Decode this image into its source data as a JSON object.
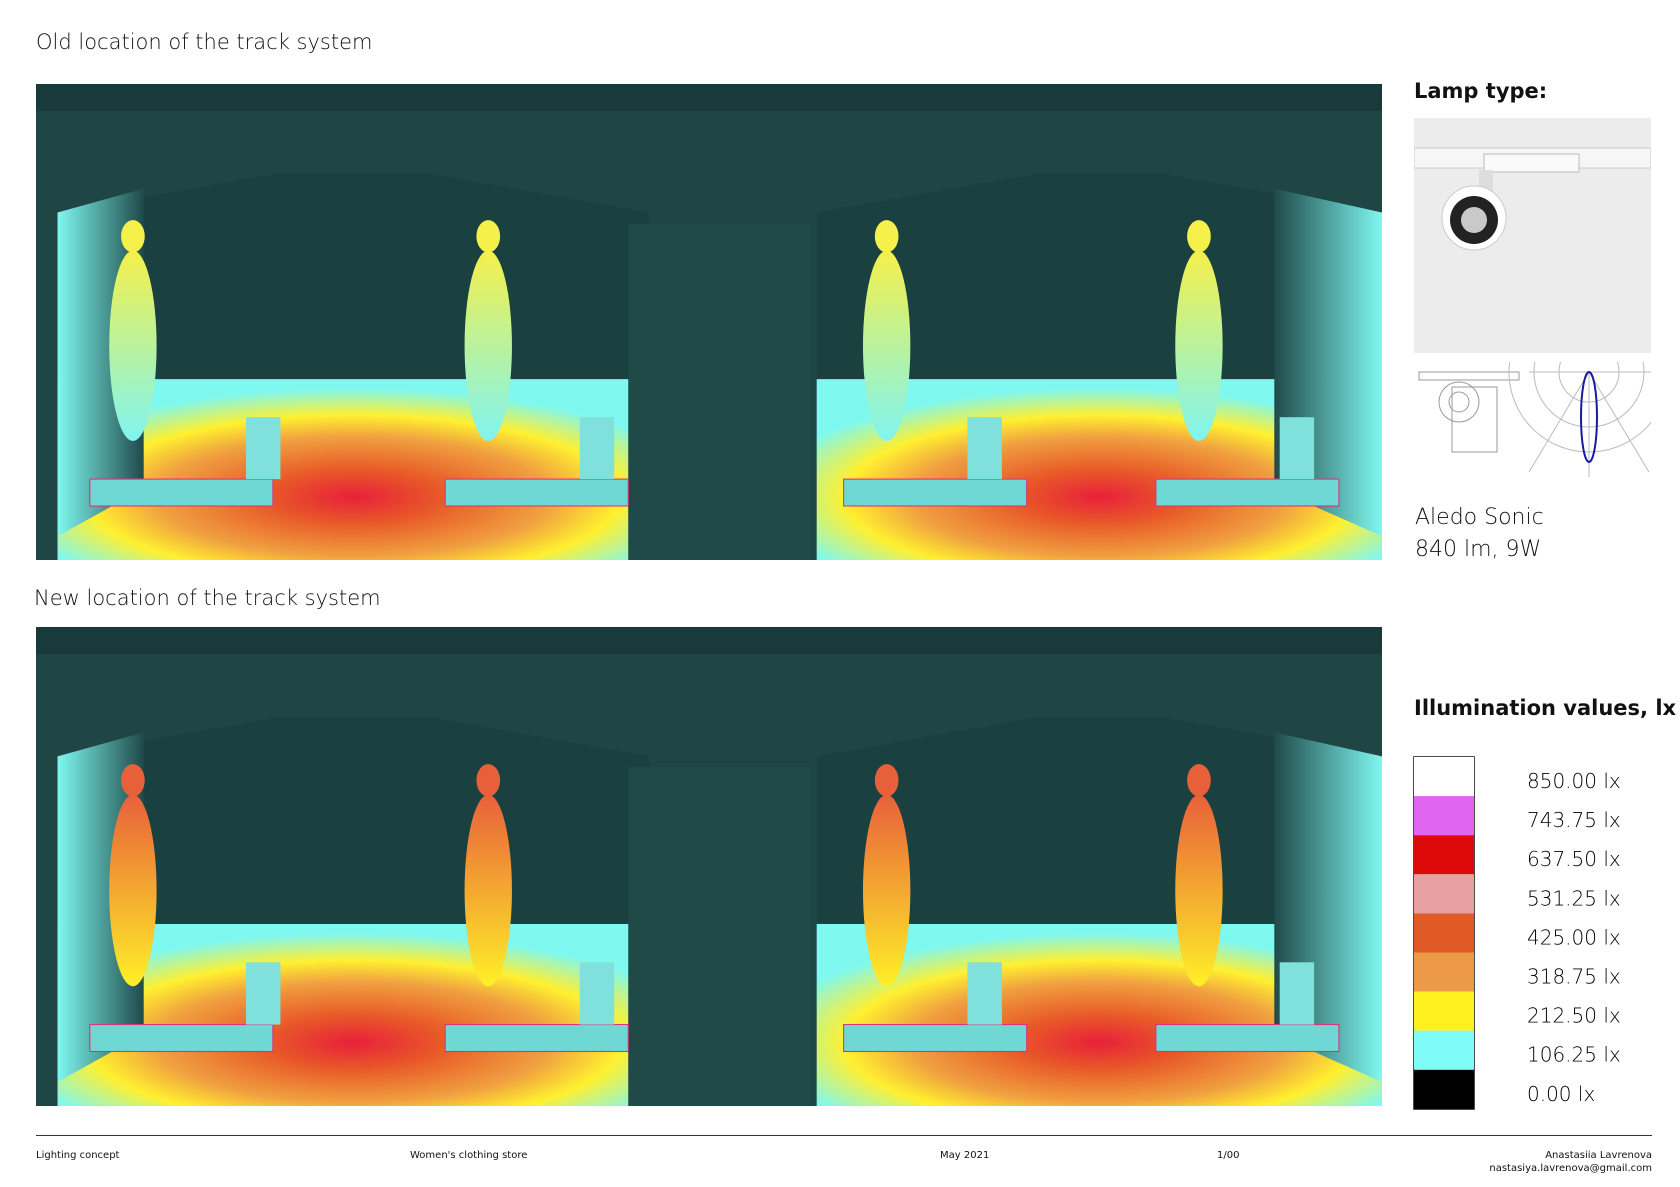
{
  "sections": [
    {
      "title": "Old location of the track system"
    },
    {
      "title": "New location of the track system"
    }
  ],
  "lamp": {
    "heading": "Lamp type:",
    "name": "Aledo Sonic",
    "spec": "840 lm, 9W"
  },
  "legend": {
    "heading": "Illumination values, lx",
    "items": [
      {
        "label": "850.00 lx",
        "color": "#ffffff"
      },
      {
        "label": "743.75 lx",
        "color": "#e066f0"
      },
      {
        "label": "637.50 lx",
        "color": "#dd0a0a"
      },
      {
        "label": "531.25 lx",
        "color": "#e8a0a0"
      },
      {
        "label": "425.00 lx",
        "color": "#e05a28"
      },
      {
        "label": "318.75 lx",
        "color": "#ec9a48"
      },
      {
        "label": "212.50 lx",
        "color": "#fff020"
      },
      {
        "label": "106.25 lx",
        "color": "#80fcf8"
      },
      {
        "label": "0.00 lx",
        "color": "#000000"
      }
    ]
  },
  "footer": {
    "project": "Lighting concept",
    "subject": "Women's clothing store",
    "date": "May 2021",
    "sheet": "1/00",
    "author": "Anastasiia Lavrenova",
    "email": "nastasiya.lavrenova@gmail.com"
  }
}
